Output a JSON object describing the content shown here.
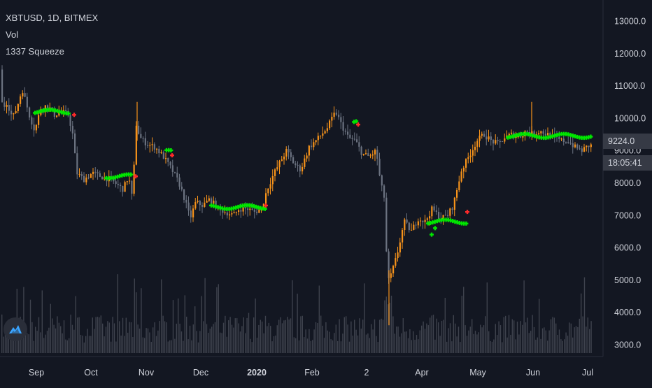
{
  "legend": {
    "symbol": "XBTUSD, 1D, BITMEX",
    "indicator1": "Vol",
    "indicator2": "1337 Squeeze"
  },
  "price_labels": {
    "last_price": "9224.0",
    "countdown": "18:05:41"
  },
  "colors": {
    "background": "#131722",
    "up_candle": "#f7931a",
    "down_candle": "#6b7280",
    "squeeze_on": "#00e600",
    "squeeze_fire": "#ff2a2a",
    "volume": "#3e424d",
    "axis_text": "#d1d4dc",
    "axis_line": "#2a2e39"
  },
  "chart_data": {
    "type": "candlestick",
    "series_names": [
      "XBTUSD",
      "Vol",
      "1337 Squeeze"
    ],
    "y_ticks": [
      "13000.0",
      "12000.0",
      "11000.0",
      "10000.0",
      "9000.0",
      "8000.0",
      "7000.0",
      "6000.0",
      "5000.0",
      "4000.0",
      "3000.0"
    ],
    "ylim": [
      2800,
      13500
    ],
    "x_ticks": [
      "Sep",
      "Oct",
      "Nov",
      "Dec",
      "2020",
      "Feb",
      "2",
      "Apr",
      "May",
      "Jun",
      "Jul"
    ],
    "grid": false,
    "price_path": [
      [
        0,
        11500
      ],
      [
        6,
        10300
      ],
      [
        12,
        10500
      ],
      [
        20,
        10000
      ],
      [
        26,
        10300
      ],
      [
        34,
        10900
      ],
      [
        44,
        10100
      ],
      [
        52,
        9600
      ],
      [
        60,
        10300
      ],
      [
        70,
        10400
      ],
      [
        80,
        10100
      ],
      [
        90,
        10200
      ],
      [
        100,
        10100
      ],
      [
        106,
        9500
      ],
      [
        112,
        8300
      ],
      [
        122,
        8100
      ],
      [
        134,
        8300
      ],
      [
        146,
        8200
      ],
      [
        160,
        8100
      ],
      [
        178,
        7800
      ],
      [
        186,
        8200
      ],
      [
        192,
        7400
      ],
      [
        196,
        9900
      ],
      [
        202,
        9400
      ],
      [
        212,
        9200
      ],
      [
        224,
        9100
      ],
      [
        236,
        8800
      ],
      [
        248,
        8400
      ],
      [
        258,
        8000
      ],
      [
        266,
        7500
      ],
      [
        274,
        6900
      ],
      [
        282,
        7400
      ],
      [
        292,
        7300
      ],
      [
        302,
        7500
      ],
      [
        314,
        7200
      ],
      [
        324,
        7100
      ],
      [
        336,
        7000
      ],
      [
        344,
        7200
      ],
      [
        356,
        7200
      ],
      [
        366,
        7100
      ],
      [
        376,
        7200
      ],
      [
        384,
        7800
      ],
      [
        394,
        8300
      ],
      [
        404,
        8700
      ],
      [
        412,
        9000
      ],
      [
        422,
        8600
      ],
      [
        432,
        8400
      ],
      [
        444,
        9100
      ],
      [
        458,
        9400
      ],
      [
        470,
        9700
      ],
      [
        482,
        10200
      ],
      [
        490,
        9800
      ],
      [
        500,
        9400
      ],
      [
        510,
        9300
      ],
      [
        520,
        8900
      ],
      [
        530,
        8800
      ],
      [
        540,
        9000
      ],
      [
        546,
        8000
      ],
      [
        552,
        7500
      ],
      [
        556,
        4900
      ],
      [
        562,
        5200
      ],
      [
        570,
        5800
      ],
      [
        580,
        6800
      ],
      [
        590,
        6500
      ],
      [
        600,
        6900
      ],
      [
        610,
        6800
      ],
      [
        620,
        7200
      ],
      [
        632,
        6900
      ],
      [
        642,
        7000
      ],
      [
        650,
        7300
      ],
      [
        662,
        8400
      ],
      [
        672,
        8800
      ],
      [
        684,
        9300
      ],
      [
        694,
        9500
      ],
      [
        704,
        9300
      ],
      [
        714,
        9200
      ],
      [
        724,
        9400
      ],
      [
        734,
        9500
      ],
      [
        744,
        9400
      ],
      [
        754,
        9600
      ],
      [
        764,
        9500
      ],
      [
        774,
        9600
      ],
      [
        784,
        9500
      ],
      [
        794,
        9400
      ],
      [
        804,
        9300
      ],
      [
        814,
        9300
      ],
      [
        824,
        9100
      ],
      [
        834,
        9000
      ],
      [
        844,
        9150
      ]
    ],
    "squeeze_segments": [
      {
        "from": 50,
        "to": 100,
        "price": 10200
      },
      {
        "from": 152,
        "to": 190,
        "price": 8200
      },
      {
        "from": 238,
        "to": 246,
        "price": 8950
      },
      {
        "from": 302,
        "to": 380,
        "price": 7250
      },
      {
        "from": 506,
        "to": 512,
        "price": 9900
      },
      {
        "from": 612,
        "to": 668,
        "price": 6800
      },
      {
        "from": 726,
        "to": 846,
        "price": 9450
      }
    ],
    "squeeze_fires": [
      {
        "x": 106,
        "price": 10100
      },
      {
        "x": 194,
        "price": 8200
      },
      {
        "x": 246,
        "price": 8850
      },
      {
        "x": 380,
        "price": 7300
      },
      {
        "x": 512,
        "price": 9800
      },
      {
        "x": 668,
        "price": 7100
      }
    ]
  }
}
